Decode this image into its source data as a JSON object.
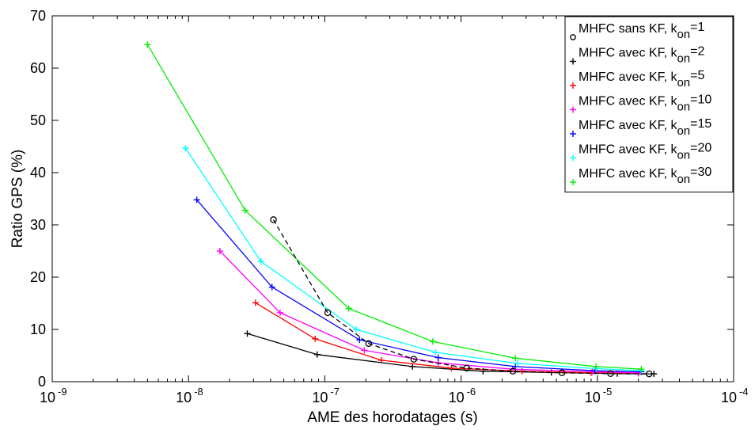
{
  "chart_data": {
    "type": "line",
    "xlabel": "AME des horodatages (s)",
    "ylabel": "Ratio GPS (%)",
    "xscale": "log",
    "xlim": [
      1e-09,
      0.0001
    ],
    "ylim": [
      0,
      70
    ],
    "x_ticks": [
      {
        "value": 1e-09,
        "base": "10",
        "exp": "-9"
      },
      {
        "value": 1e-08,
        "base": "10",
        "exp": "-8"
      },
      {
        "value": 1e-07,
        "base": "10",
        "exp": "-7"
      },
      {
        "value": 1e-06,
        "base": "10",
        "exp": "-6"
      },
      {
        "value": 1e-05,
        "base": "10",
        "exp": "-5"
      },
      {
        "value": 0.0001,
        "base": "10",
        "exp": "-4"
      }
    ],
    "y_ticks": [
      {
        "value": 0,
        "label": "0"
      },
      {
        "value": 10,
        "label": "10"
      },
      {
        "value": 20,
        "label": "20"
      },
      {
        "value": 30,
        "label": "30"
      },
      {
        "value": 40,
        "label": "40"
      },
      {
        "value": 50,
        "label": "50"
      },
      {
        "value": 60,
        "label": "60"
      },
      {
        "value": 70,
        "label": "70"
      }
    ],
    "grid": false,
    "legend_position": "top-right",
    "series": [
      {
        "name_main": "MHFC sans KF, k",
        "name_sub": "on",
        "name_tail": "=1",
        "color": "#000000",
        "marker": "circle",
        "dashed": true,
        "x": [
          4.2e-08,
          1.05e-07,
          2.1e-07,
          4.5e-07,
          1.1e-06,
          2.4e-06,
          5.5e-06,
          1.25e-05,
          2.4e-05
        ],
        "y": [
          31.0,
          13.2,
          7.3,
          4.3,
          2.6,
          2.0,
          1.7,
          1.55,
          1.5
        ]
      },
      {
        "name_main": "MHFC avec KF, k",
        "name_sub": "on",
        "name_tail": "=2",
        "color": "#000000",
        "marker": "plus",
        "dashed": false,
        "x": [
          2.7e-08,
          8.8e-08,
          4.4e-07,
          1.45e-06,
          4.6e-06,
          1.4e-05,
          2.6e-05
        ],
        "y": [
          9.2,
          5.2,
          2.9,
          2.0,
          1.75,
          1.55,
          1.5
        ]
      },
      {
        "name_main": "MHFC avec KF, k",
        "name_sub": "on",
        "name_tail": "=5",
        "color": "#ff0000",
        "marker": "plus",
        "dashed": false,
        "x": [
          3.1e-08,
          8.5e-08,
          2.6e-07,
          8.5e-07,
          2.8e-06,
          9e-06,
          2e-05
        ],
        "y": [
          15.1,
          8.2,
          4.1,
          2.6,
          2.0,
          1.7,
          1.6
        ]
      },
      {
        "name_main": "MHFC avec KF, k",
        "name_sub": "on",
        "name_tail": "=10",
        "color": "#ff00ff",
        "marker": "plus",
        "dashed": false,
        "x": [
          1.7e-08,
          4.7e-08,
          1.95e-07,
          6.8e-07,
          2.4e-06,
          9.2e-06,
          2e-05
        ],
        "y": [
          25.0,
          13.2,
          6.0,
          3.6,
          2.4,
          1.9,
          1.7
        ]
      },
      {
        "name_main": "MHFC avec KF, k",
        "name_sub": "on",
        "name_tail": "=15",
        "color": "#0000ff",
        "marker": "plus",
        "dashed": false,
        "x": [
          1.15e-08,
          4.1e-08,
          1.8e-07,
          6.8e-07,
          2.5e-06,
          9.6e-06,
          2.1e-05
        ],
        "y": [
          34.8,
          18.1,
          8.0,
          4.6,
          2.9,
          2.1,
          1.9
        ]
      },
      {
        "name_main": "MHFC avec KF, k",
        "name_sub": "on",
        "name_tail": "=20",
        "color": "#00ffff",
        "marker": "plus",
        "dashed": false,
        "x": [
          9.5e-09,
          3.4e-08,
          1.7e-07,
          6.5e-07,
          2.6e-06,
          9.8e-06,
          2.1e-05
        ],
        "y": [
          44.7,
          23.0,
          10.0,
          5.6,
          3.5,
          2.5,
          2.1
        ]
      },
      {
        "name_main": "MHFC avec KF, k",
        "name_sub": "on",
        "name_tail": "=30",
        "color": "#00ee00",
        "marker": "plus",
        "dashed": false,
        "x": [
          5e-09,
          2.6e-08,
          1.5e-07,
          6.2e-07,
          2.5e-06,
          9.8e-06,
          2.1e-05
        ],
        "y": [
          64.5,
          32.8,
          14.0,
          7.7,
          4.5,
          2.9,
          2.4
        ]
      }
    ]
  }
}
